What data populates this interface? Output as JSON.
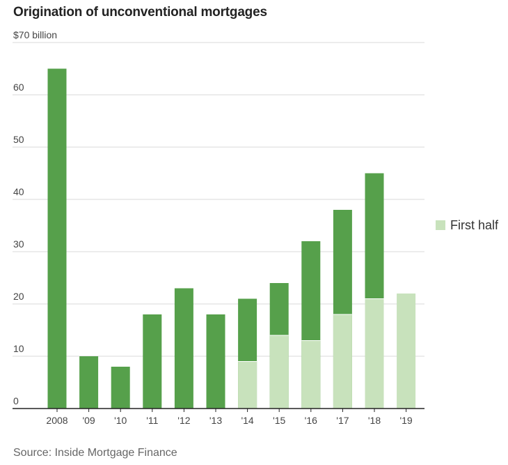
{
  "header": {
    "title": "Origination of unconventional mortgages"
  },
  "footer": {
    "source": "Source: Inside Mortgage Finance"
  },
  "legend": {
    "first_half_label": "First half"
  },
  "colors": {
    "full_year": "#56a04b",
    "first_half": "#c8e2bc",
    "grid": "#d9d9d9",
    "axis": "#222222"
  },
  "chart_data": {
    "type": "bar",
    "title": "Origination of unconventional mortgages",
    "xlabel": "",
    "ylabel": "",
    "y_unit_label": "$70 billion",
    "ylim": [
      0,
      70
    ],
    "y_ticks": [
      "0",
      "10",
      "20",
      "30",
      "40",
      "50",
      "60"
    ],
    "grid": true,
    "legend_position": "right",
    "categories": [
      "2008",
      "'09",
      "'10",
      "'11",
      "'12",
      "'13",
      "'14",
      "'15",
      "'16",
      "'17",
      "'18",
      "'19"
    ],
    "series": [
      {
        "name": "",
        "role": "full_year",
        "values": [
          65,
          10,
          8,
          18,
          23,
          18,
          21,
          24,
          32,
          38,
          45,
          null
        ]
      },
      {
        "name": "First half",
        "role": "first_half",
        "values": [
          null,
          null,
          null,
          null,
          null,
          null,
          9,
          14,
          13,
          18,
          21,
          22
        ]
      }
    ]
  }
}
